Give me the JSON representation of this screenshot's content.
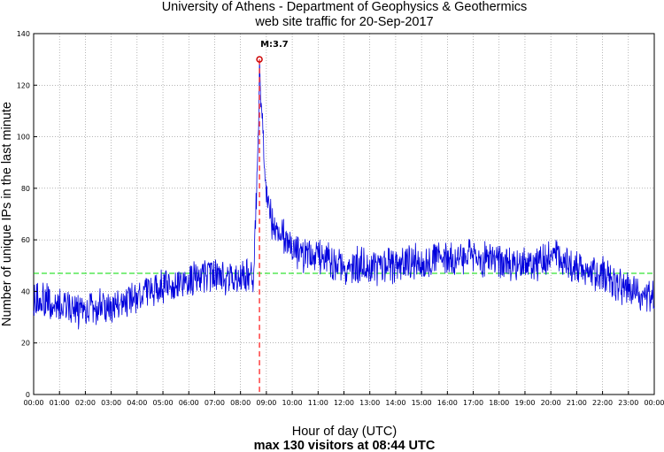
{
  "chart_data": {
    "type": "line",
    "title": "University of Athens - Department of Geophysics & Geothermics",
    "subtitle": "web site traffic for 20-Sep-2017",
    "xlabel": "Hour of day (UTC)",
    "ylabel": "Number of unique IPs in the last minute",
    "footer": "max 130 visitors at 08:44 UTC",
    "xlim": [
      0,
      24
    ],
    "ylim": [
      0,
      140
    ],
    "yticks": [
      0,
      20,
      40,
      60,
      80,
      100,
      120,
      140
    ],
    "xticks": [
      "00:00",
      "01:00",
      "02:00",
      "03:00",
      "04:00",
      "05:00",
      "06:00",
      "07:00",
      "08:00",
      "09:00",
      "10:00",
      "11:00",
      "12:00",
      "13:00",
      "14:00",
      "15:00",
      "16:00",
      "17:00",
      "18:00",
      "19:00",
      "20:00",
      "21:00",
      "22:00",
      "23:00",
      "00:00"
    ],
    "grid": true,
    "average_line": {
      "value": 47,
      "color": "#00dd00"
    },
    "event": {
      "label": "M:3.7",
      "time_hours": 8.733,
      "value": 130,
      "line_color": "#ff3333"
    },
    "series": [
      {
        "color": "#0000dd",
        "trend": [
          [
            0.0,
            37
          ],
          [
            0.5,
            36
          ],
          [
            1.0,
            34
          ],
          [
            1.5,
            33
          ],
          [
            2.0,
            33
          ],
          [
            2.5,
            34
          ],
          [
            3.0,
            34
          ],
          [
            3.5,
            36
          ],
          [
            4.0,
            38
          ],
          [
            4.5,
            40
          ],
          [
            5.0,
            42
          ],
          [
            5.5,
            43
          ],
          [
            6.0,
            45
          ],
          [
            6.5,
            46
          ],
          [
            7.0,
            46
          ],
          [
            7.5,
            45
          ],
          [
            8.0,
            46
          ],
          [
            8.5,
            47
          ],
          [
            8.7,
            100
          ],
          [
            8.733,
            130
          ],
          [
            8.8,
            110
          ],
          [
            9.0,
            80
          ],
          [
            9.2,
            68
          ],
          [
            9.5,
            62
          ],
          [
            10.0,
            57
          ],
          [
            10.5,
            54
          ],
          [
            11.0,
            54
          ],
          [
            11.5,
            52
          ],
          [
            12.0,
            50
          ],
          [
            12.5,
            50
          ],
          [
            13.0,
            50
          ],
          [
            13.5,
            50
          ],
          [
            14.0,
            50
          ],
          [
            14.5,
            51
          ],
          [
            15.0,
            52
          ],
          [
            15.5,
            52
          ],
          [
            16.0,
            53
          ],
          [
            16.5,
            53
          ],
          [
            17.0,
            53
          ],
          [
            17.5,
            52
          ],
          [
            18.0,
            51
          ],
          [
            18.5,
            51
          ],
          [
            19.0,
            51
          ],
          [
            19.5,
            50
          ],
          [
            20.0,
            54
          ],
          [
            20.5,
            51
          ],
          [
            21.0,
            50
          ],
          [
            21.5,
            48
          ],
          [
            22.0,
            46
          ],
          [
            22.5,
            43
          ],
          [
            23.0,
            41
          ],
          [
            23.5,
            38
          ],
          [
            24.0,
            38
          ]
        ]
      }
    ]
  }
}
